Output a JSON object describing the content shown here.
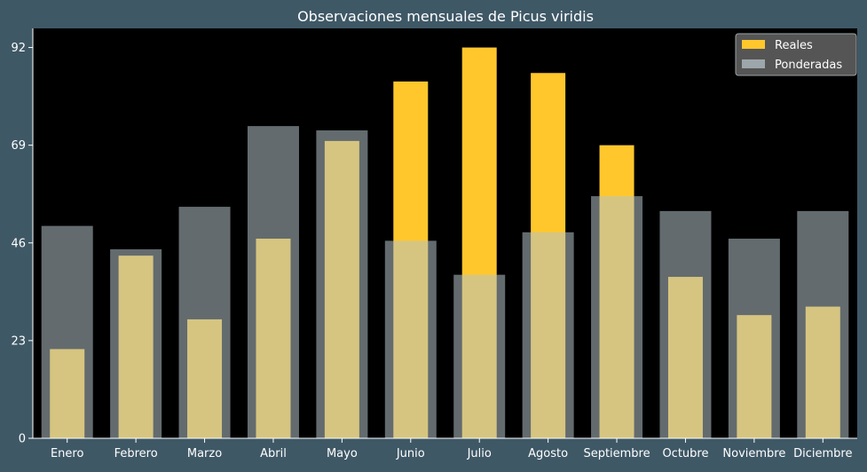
{
  "chart_data": {
    "type": "bar",
    "title": "Observaciones mensuales de Picus viridis",
    "xlabel": "",
    "ylabel": "",
    "categories": [
      "Enero",
      "Febrero",
      "Marzo",
      "Abril",
      "Mayo",
      "Junio",
      "Julio",
      "Agosto",
      "Septiembre",
      "Octubre",
      "Noviembre",
      "Diciembre"
    ],
    "series": [
      {
        "name": "Reales",
        "values": [
          21,
          43,
          28,
          47,
          70,
          84,
          92,
          86,
          69,
          38,
          29,
          31
        ],
        "color": "#ffc72c"
      },
      {
        "name": "Ponderadas",
        "values": [
          50,
          44.5,
          54.5,
          73.5,
          72.5,
          46.5,
          38.5,
          48.5,
          57,
          53.5,
          47,
          53.5
        ],
        "color": "#b5c3c8",
        "opacity": 0.55
      }
    ],
    "ylim": [
      0,
      96.5
    ],
    "yticks": [
      0,
      23,
      46,
      69,
      92
    ],
    "legend": "top-right",
    "grid": false,
    "colors": {
      "background": "#3f5866",
      "plot_background": "#000000",
      "text": "#ffffff",
      "legend_background": "#555555"
    }
  }
}
